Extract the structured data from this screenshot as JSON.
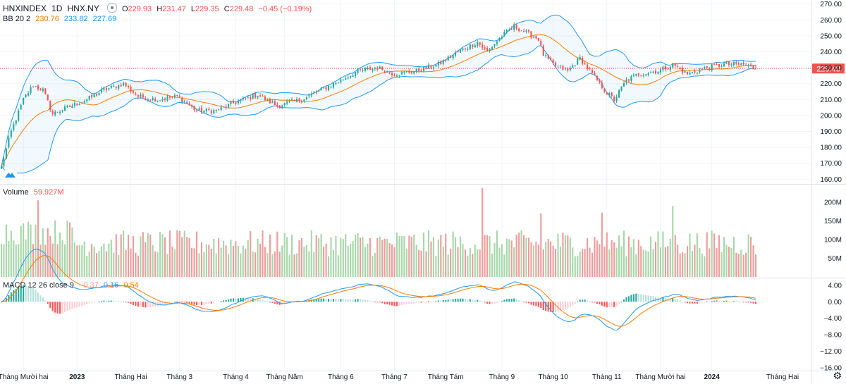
{
  "header": {
    "symbol": "HNXINDEX",
    "interval": "1D",
    "exchange": "HNX.NY",
    "o_label": "O",
    "o": "229.93",
    "h_label": "H",
    "h": "231.47",
    "l_label": "L",
    "l": "229.35",
    "c_label": "C",
    "c": "229.48",
    "change": "−0.45 (−0.19%)"
  },
  "bb_legend": {
    "name": "BB 20 2",
    "basis": "230.76",
    "upper": "233.82",
    "lower": "227.69"
  },
  "volume_legend": {
    "name": "Volume",
    "value": "59.927M"
  },
  "macd_legend": {
    "name": "MACD 12 26 close 9",
    "hist": "−0.37",
    "macd": "0.16",
    "signal": "0.54"
  },
  "colors": {
    "up": "#26a69a",
    "down": "#ef5350",
    "bb": "#2196f3",
    "basis": "#f57c00",
    "vol_up": "#a5d6a7",
    "vol_down": "#ef9a9a"
  },
  "last_price_tag": "229.48",
  "chart_data": [
    {
      "type": "candlestick",
      "title": "HNXINDEX 1D HNX.NY",
      "y_ticks": [
        "270.00",
        "260.00",
        "250.00",
        "240.00",
        "230.00",
        "220.00",
        "210.00",
        "200.00",
        "190.00",
        "180.00",
        "170.00",
        "160.00"
      ],
      "ylim": [
        157.5,
        272.5
      ],
      "x_ticks": [
        "Tháng Mười hai",
        "2023",
        "Tháng Hai",
        "Tháng 3",
        "Tháng 4",
        "Tháng Năm",
        "Tháng 6",
        "Tháng 7",
        "Tháng Tám",
        "Tháng 9",
        "Tháng 10",
        "Tháng 11",
        "Tháng Mười hai",
        "2024",
        "Tháng Hai"
      ],
      "close_anchors": [
        {
          "d": "2022-11-18",
          "v": 168
        },
        {
          "d": "2022-11-24",
          "v": 190
        },
        {
          "d": "2022-12-01",
          "v": 210
        },
        {
          "d": "2022-12-07",
          "v": 219
        },
        {
          "d": "2022-12-13",
          "v": 216
        },
        {
          "d": "2022-12-19",
          "v": 201
        },
        {
          "d": "2022-12-27",
          "v": 205
        },
        {
          "d": "2023-01-06",
          "v": 210
        },
        {
          "d": "2023-01-17",
          "v": 216
        },
        {
          "d": "2023-01-27",
          "v": 220
        },
        {
          "d": "2023-02-06",
          "v": 212
        },
        {
          "d": "2023-02-16",
          "v": 210
        },
        {
          "d": "2023-02-28",
          "v": 212
        },
        {
          "d": "2023-03-10",
          "v": 203
        },
        {
          "d": "2023-03-22",
          "v": 203
        },
        {
          "d": "2023-04-04",
          "v": 209
        },
        {
          "d": "2023-04-14",
          "v": 213
        },
        {
          "d": "2023-04-26",
          "v": 206
        },
        {
          "d": "2023-05-10",
          "v": 210
        },
        {
          "d": "2023-05-22",
          "v": 216
        },
        {
          "d": "2023-06-01",
          "v": 222
        },
        {
          "d": "2023-06-12",
          "v": 228
        },
        {
          "d": "2023-06-22",
          "v": 230
        },
        {
          "d": "2023-07-03",
          "v": 226
        },
        {
          "d": "2023-07-14",
          "v": 228
        },
        {
          "d": "2023-07-27",
          "v": 232
        },
        {
          "d": "2023-08-08",
          "v": 240
        },
        {
          "d": "2023-08-18",
          "v": 246
        },
        {
          "d": "2023-08-24",
          "v": 240
        },
        {
          "d": "2023-09-01",
          "v": 250
        },
        {
          "d": "2023-09-08",
          "v": 256
        },
        {
          "d": "2023-09-15",
          "v": 252
        },
        {
          "d": "2023-09-22",
          "v": 248
        },
        {
          "d": "2023-09-26",
          "v": 238
        },
        {
          "d": "2023-10-02",
          "v": 232
        },
        {
          "d": "2023-10-10",
          "v": 228
        },
        {
          "d": "2023-10-17",
          "v": 236
        },
        {
          "d": "2023-10-20",
          "v": 230
        },
        {
          "d": "2023-10-27",
          "v": 220
        },
        {
          "d": "2023-11-01",
          "v": 214
        },
        {
          "d": "2023-11-06",
          "v": 210
        },
        {
          "d": "2023-11-13",
          "v": 222
        },
        {
          "d": "2023-11-20",
          "v": 226
        },
        {
          "d": "2023-11-30",
          "v": 228
        },
        {
          "d": "2023-12-08",
          "v": 232
        },
        {
          "d": "2023-12-18",
          "v": 226
        },
        {
          "d": "2023-12-28",
          "v": 230
        },
        {
          "d": "2024-01-08",
          "v": 232
        },
        {
          "d": "2024-01-18",
          "v": 232
        },
        {
          "d": "2024-01-25",
          "v": 229.48
        }
      ],
      "last": {
        "o": 229.93,
        "h": 231.47,
        "l": 229.35,
        "c": 229.48
      },
      "overlays": [
        "BB 20 2 upper",
        "BB 20 2 basis",
        "BB 20 2 lower"
      ]
    },
    {
      "type": "bar",
      "title": "Volume",
      "y_ticks": [
        "200M",
        "150M",
        "100M",
        "50M"
      ],
      "ylim": [
        0,
        245
      ],
      "spikes": [
        {
          "d": "2022-12-09",
          "v": 205
        },
        {
          "d": "2023-08-22",
          "v": 238
        },
        {
          "d": "2023-09-25",
          "v": 170
        },
        {
          "d": "2023-10-30",
          "v": 172
        },
        {
          "d": "2023-12-08",
          "v": 190
        }
      ],
      "last_value": 59.927
    },
    {
      "type": "bar",
      "title": "MACD 12 26 close 9",
      "y_ticks": [
        "4.00",
        "0.00",
        "−4.00",
        "−8.00",
        "−12.00",
        "−16.00"
      ],
      "ylim": [
        -16.5,
        5.5
      ],
      "series": [
        {
          "name": "MACD",
          "last": 0.16
        },
        {
          "name": "Signal",
          "last": 0.54
        },
        {
          "name": "Histogram",
          "last": -0.37
        }
      ]
    }
  ]
}
